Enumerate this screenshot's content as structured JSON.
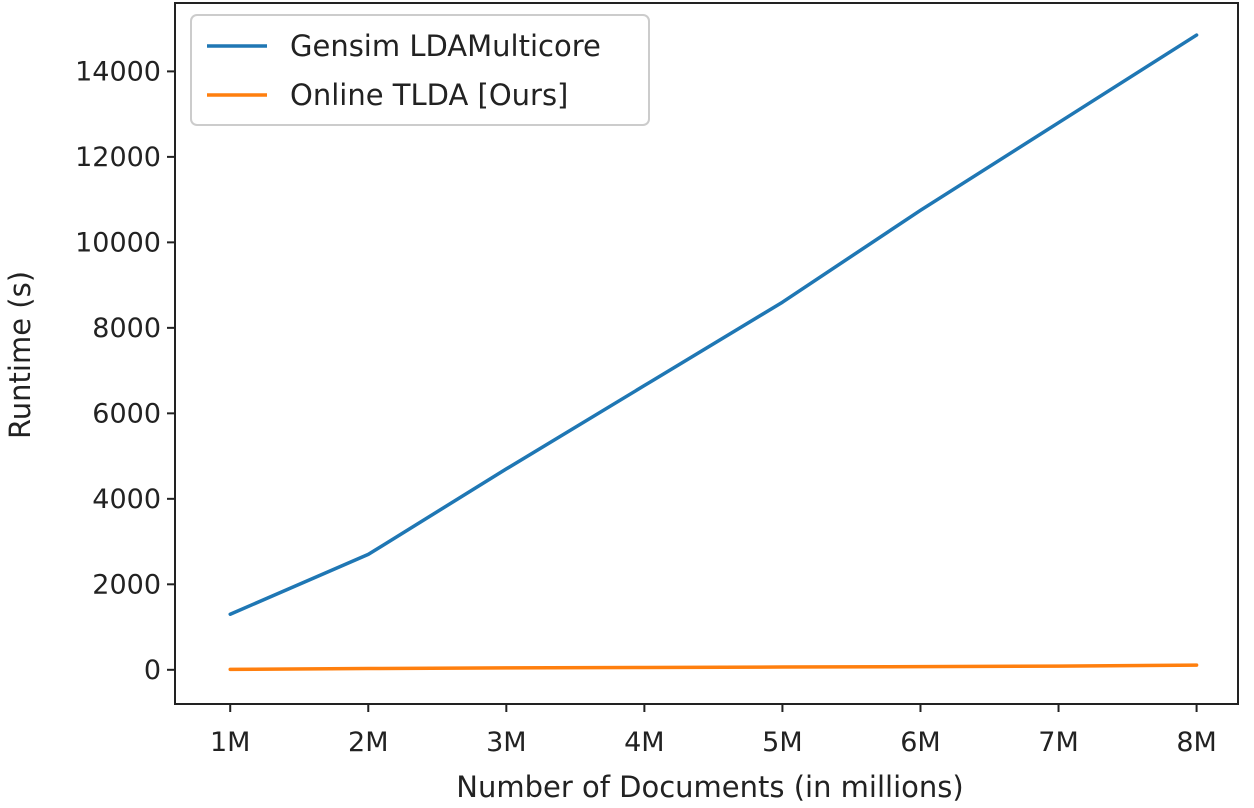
{
  "chart_data": {
    "type": "line",
    "title": "",
    "xlabel": "Number of Documents (in millions)",
    "ylabel": "Runtime (s)",
    "x": [
      1,
      2,
      3,
      4,
      5,
      6,
      7,
      8
    ],
    "x_tick_labels": [
      "1M",
      "2M",
      "3M",
      "4M",
      "5M",
      "6M",
      "7M",
      "8M"
    ],
    "y_ticks": [
      0,
      2000,
      4000,
      6000,
      8000,
      10000,
      12000,
      14000
    ],
    "y_tick_labels": [
      "0",
      "2000",
      "4000",
      "6000",
      "8000",
      "10000",
      "12000",
      "14000"
    ],
    "xlim": [
      0.6,
      8.3
    ],
    "ylim": [
      -800,
      15600
    ],
    "grid": false,
    "legend_position": "top-left",
    "series": [
      {
        "name": "Gensim LDAMulticore",
        "color": "#1f77b4",
        "values": [
          1300,
          2700,
          4700,
          6650,
          8600,
          10750,
          12800,
          14850
        ]
      },
      {
        "name": "Online TLDA [Ours]",
        "color": "#ff7f0e",
        "values": [
          10,
          30,
          45,
          55,
          65,
          75,
          85,
          110
        ]
      }
    ]
  }
}
